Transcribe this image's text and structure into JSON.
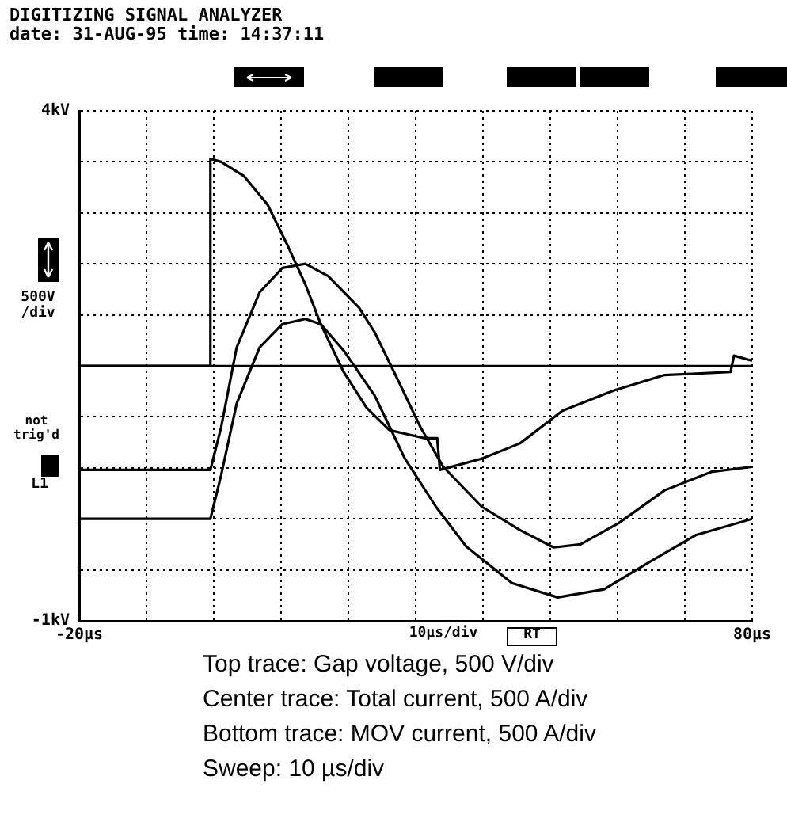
{
  "chart_data": {
    "type": "line",
    "title": "DIGITIZING SIGNAL ANALYZER",
    "subtitle": "date: 31-AUG-95 time: 14:37:11",
    "xlim": [
      -20,
      80
    ],
    "xticks": [
      {
        "value": -20,
        "label": "-20µs"
      },
      {
        "value": -10,
        "label": null
      },
      {
        "value": 0,
        "label": null
      },
      {
        "value": 10,
        "label": null
      },
      {
        "value": 20,
        "label": null
      },
      {
        "value": 30,
        "label": null
      },
      {
        "value": 40,
        "label": null
      },
      {
        "value": 50,
        "label": null
      },
      {
        "value": 60,
        "label": null
      },
      {
        "value": 70,
        "label": null
      },
      {
        "value": 80,
        "label": "80µs"
      }
    ],
    "ylim": [
      -1,
      4
    ],
    "yticks": [
      {
        "value": -1,
        "label": "-1kV"
      },
      {
        "value": -0.5,
        "label": null
      },
      {
        "value": 0,
        "label": null
      },
      {
        "value": 0.5,
        "label": null
      },
      {
        "value": 1,
        "label": null
      },
      {
        "value": 1.5,
        "label": null
      },
      {
        "value": 2,
        "label": null
      },
      {
        "value": 2.5,
        "label": null
      },
      {
        "value": 3,
        "label": null
      },
      {
        "value": 3.5,
        "label": null
      },
      {
        "value": 4,
        "label": "4kV"
      }
    ],
    "grid": true,
    "legend": false,
    "marker": "none",
    "line_style": "solid",
    "ref_lines": [
      {
        "axis": "y",
        "value": 1.5,
        "color": "#000000"
      }
    ],
    "series": [
      {
        "color": "#000000",
        "x": [
          -20,
          -0.7,
          -0.5,
          1.1,
          4.5,
          8.0,
          10.9,
          13.6,
          15.9,
          19.3,
          22.7,
          26.1,
          31.4,
          33.2,
          33.6,
          39.8,
          45.5,
          51.8,
          59.5,
          67.0,
          76.8,
          77.3,
          80
        ],
        "values": [
          1.5,
          1.5,
          3.53,
          3.5,
          3.36,
          3.08,
          2.69,
          2.3,
          1.91,
          1.44,
          1.09,
          0.87,
          0.79,
          0.79,
          0.48,
          0.59,
          0.74,
          1.06,
          1.26,
          1.41,
          1.44,
          1.6,
          1.55
        ]
      },
      {
        "color": "#000000",
        "x": [
          -20,
          -0.5,
          1.1,
          3.4,
          6.8,
          10.2,
          13.6,
          17.0,
          21.6,
          23.9,
          27.3,
          30.7,
          34.1,
          39.8,
          45.5,
          50.5,
          54.5,
          60.2,
          67.0,
          73.9,
          80
        ],
        "values": [
          0.48,
          0.48,
          0.9,
          1.68,
          2.22,
          2.46,
          2.5,
          2.38,
          2.07,
          1.83,
          1.37,
          0.9,
          0.51,
          0.12,
          -0.11,
          -0.28,
          -0.25,
          -0.04,
          0.28,
          0.46,
          0.51
        ]
      },
      {
        "color": "#000000",
        "x": [
          -20,
          -0.5,
          1.1,
          3.4,
          6.8,
          10.2,
          13.6,
          15.9,
          19.3,
          23.9,
          28.4,
          33.0,
          37.5,
          44.3,
          51.1,
          58.0,
          64.8,
          71.6,
          80
        ],
        "values": [
          0,
          0,
          0.43,
          1.13,
          1.68,
          1.91,
          1.96,
          1.91,
          1.65,
          1.21,
          0.59,
          0.12,
          -0.27,
          -0.63,
          -0.77,
          -0.69,
          -0.42,
          -0.16,
          0
        ]
      }
    ],
    "annotations": [
      "500V /div",
      "not trig'd",
      "L1",
      "10µs/div",
      "RT",
      "Top trace: Gap voltage, 500 V/div",
      "Center trace: Total current, 500 A/div",
      "Bottom trace: MOV current, 500 A/div",
      "Sweep: 10 µs/div"
    ]
  }
}
